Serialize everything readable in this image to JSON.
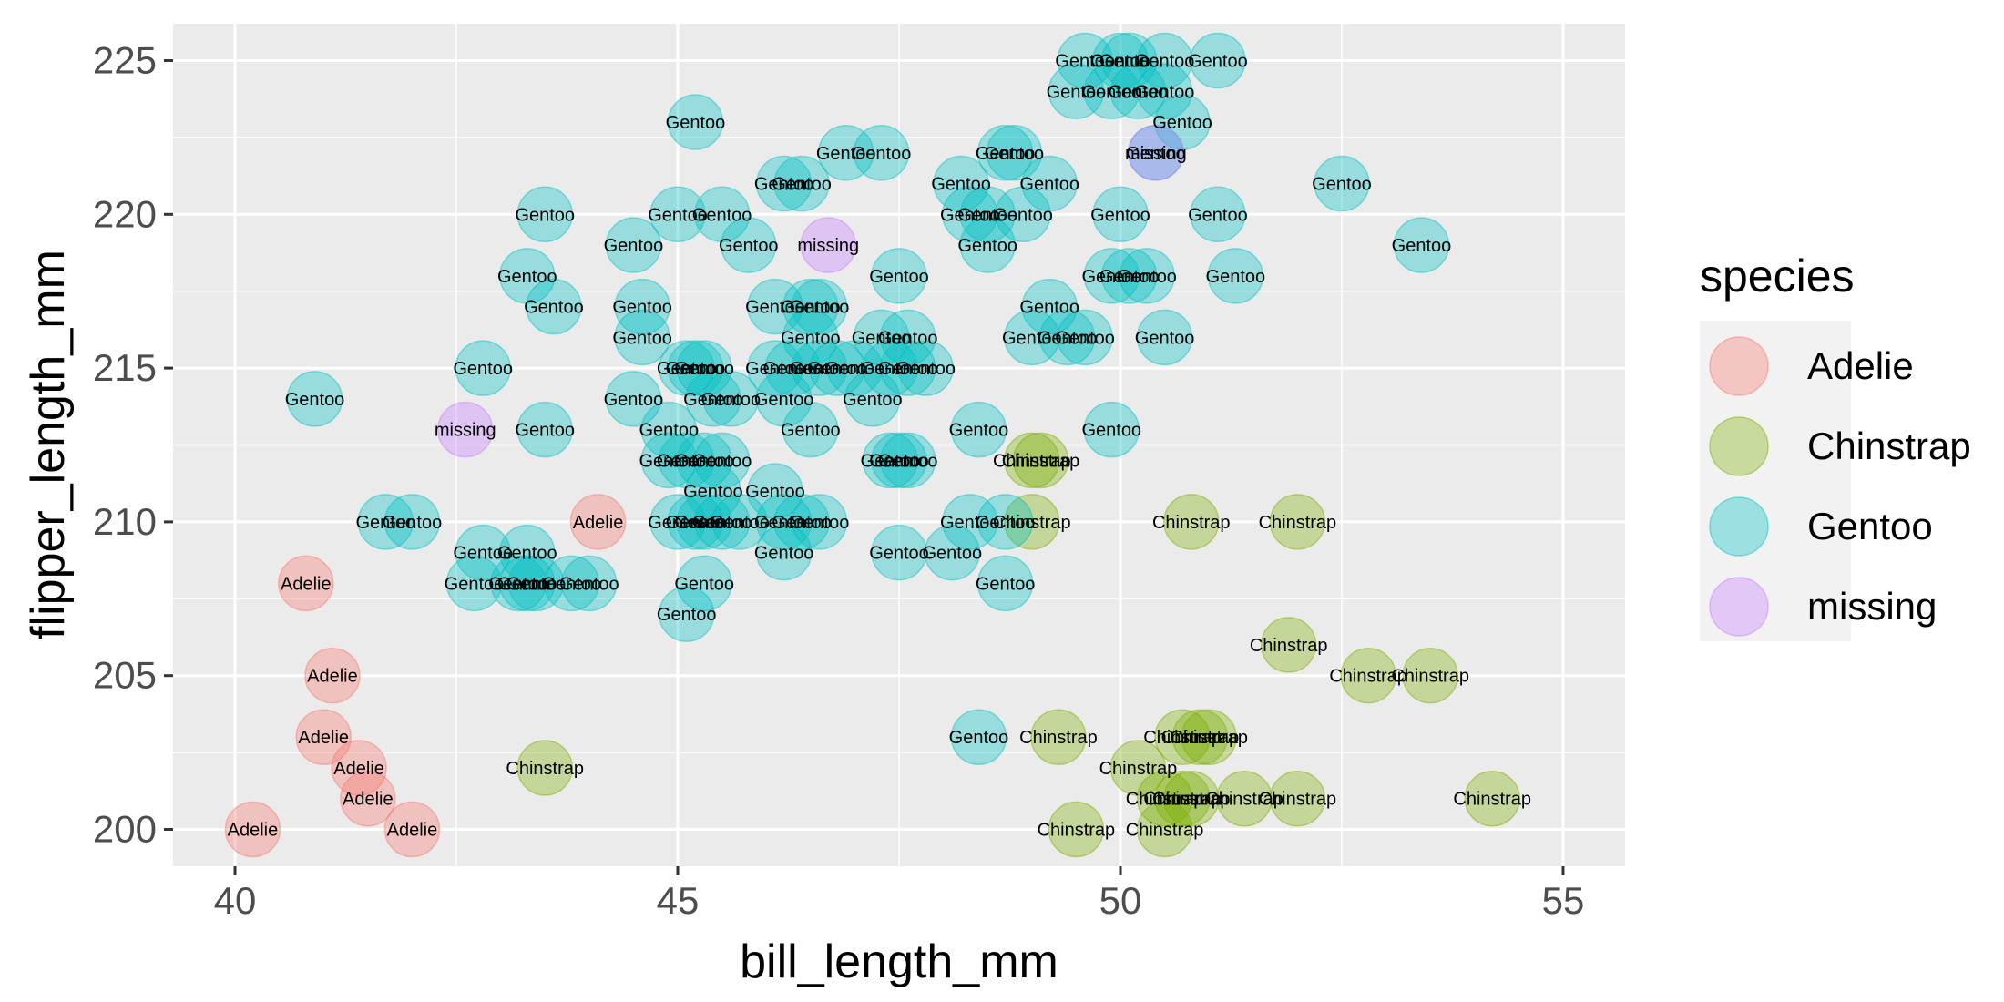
{
  "chart_data": {
    "type": "scatter",
    "xlabel": "bill_length_mm",
    "ylabel": "flipper_length_mm",
    "xlim": [
      39.3,
      55.7
    ],
    "ylim": [
      198.8,
      226.2
    ],
    "xticks": [
      40,
      45,
      50,
      55
    ],
    "yticks": [
      200,
      205,
      210,
      215,
      220,
      225
    ],
    "grid": true,
    "legend": {
      "title": "species",
      "position": "right",
      "entries": [
        {
          "label": "Adelie",
          "color": "#F8766D"
        },
        {
          "label": "Chinstrap",
          "color": "#7CAE00"
        },
        {
          "label": "Gentoo",
          "color": "#00BFC4"
        },
        {
          "label": "missing",
          "color": "#C77CFF"
        }
      ]
    },
    "series": [
      {
        "name": "Adelie",
        "color": "#F8766D",
        "points": [
          {
            "x": 40.2,
            "y": 200
          },
          {
            "x": 42.0,
            "y": 200
          },
          {
            "x": 41.5,
            "y": 201
          },
          {
            "x": 41.4,
            "y": 202
          },
          {
            "x": 41.0,
            "y": 203
          },
          {
            "x": 41.1,
            "y": 205
          },
          {
            "x": 40.8,
            "y": 208
          },
          {
            "x": 44.1,
            "y": 210
          }
        ]
      },
      {
        "name": "Chinstrap",
        "color": "#7CAE00",
        "points": [
          {
            "x": 43.5,
            "y": 202
          },
          {
            "x": 49.3,
            "y": 203
          },
          {
            "x": 49.5,
            "y": 200
          },
          {
            "x": 50.5,
            "y": 200
          },
          {
            "x": 50.2,
            "y": 202
          },
          {
            "x": 50.5,
            "y": 201
          },
          {
            "x": 50.7,
            "y": 201
          },
          {
            "x": 50.8,
            "y": 201
          },
          {
            "x": 51.4,
            "y": 201
          },
          {
            "x": 52.0,
            "y": 201
          },
          {
            "x": 50.7,
            "y": 203
          },
          {
            "x": 50.9,
            "y": 203
          },
          {
            "x": 51.0,
            "y": 203
          },
          {
            "x": 51.9,
            "y": 206
          },
          {
            "x": 52.8,
            "y": 205
          },
          {
            "x": 53.5,
            "y": 205
          },
          {
            "x": 54.2,
            "y": 201
          },
          {
            "x": 49.0,
            "y": 210
          },
          {
            "x": 50.8,
            "y": 210
          },
          {
            "x": 52.0,
            "y": 210
          },
          {
            "x": 49.0,
            "y": 212
          },
          {
            "x": 49.1,
            "y": 212
          }
        ]
      },
      {
        "name": "Gentoo",
        "color": "#00BFC4",
        "points": [
          {
            "x": 49.6,
            "y": 225
          },
          {
            "x": 50.0,
            "y": 225
          },
          {
            "x": 50.1,
            "y": 225
          },
          {
            "x": 50.5,
            "y": 225
          },
          {
            "x": 51.1,
            "y": 225
          },
          {
            "x": 49.5,
            "y": 224
          },
          {
            "x": 49.9,
            "y": 224
          },
          {
            "x": 50.2,
            "y": 224
          },
          {
            "x": 50.5,
            "y": 224
          },
          {
            "x": 50.7,
            "y": 223
          },
          {
            "x": 45.2,
            "y": 223
          },
          {
            "x": 46.9,
            "y": 222
          },
          {
            "x": 47.3,
            "y": 222
          },
          {
            "x": 48.7,
            "y": 222
          },
          {
            "x": 48.8,
            "y": 222
          },
          {
            "x": 50.4,
            "y": 222
          },
          {
            "x": 46.2,
            "y": 221
          },
          {
            "x": 46.4,
            "y": 221
          },
          {
            "x": 48.2,
            "y": 221
          },
          {
            "x": 49.2,
            "y": 221
          },
          {
            "x": 52.5,
            "y": 221
          },
          {
            "x": 43.5,
            "y": 220
          },
          {
            "x": 45.0,
            "y": 220
          },
          {
            "x": 45.5,
            "y": 220
          },
          {
            "x": 48.3,
            "y": 220
          },
          {
            "x": 48.5,
            "y": 220
          },
          {
            "x": 48.9,
            "y": 220
          },
          {
            "x": 50.0,
            "y": 220
          },
          {
            "x": 51.1,
            "y": 220
          },
          {
            "x": 44.5,
            "y": 219
          },
          {
            "x": 45.8,
            "y": 219
          },
          {
            "x": 48.5,
            "y": 219
          },
          {
            "x": 53.4,
            "y": 219
          },
          {
            "x": 43.3,
            "y": 218
          },
          {
            "x": 47.5,
            "y": 218
          },
          {
            "x": 49.9,
            "y": 218
          },
          {
            "x": 50.1,
            "y": 218
          },
          {
            "x": 50.3,
            "y": 218
          },
          {
            "x": 51.3,
            "y": 218
          },
          {
            "x": 43.6,
            "y": 217
          },
          {
            "x": 44.6,
            "y": 217
          },
          {
            "x": 46.1,
            "y": 217
          },
          {
            "x": 46.5,
            "y": 217
          },
          {
            "x": 46.6,
            "y": 217
          },
          {
            "x": 49.2,
            "y": 217
          },
          {
            "x": 44.6,
            "y": 216
          },
          {
            "x": 46.5,
            "y": 216
          },
          {
            "x": 47.3,
            "y": 216
          },
          {
            "x": 47.6,
            "y": 216
          },
          {
            "x": 49.0,
            "y": 216
          },
          {
            "x": 49.4,
            "y": 216
          },
          {
            "x": 49.6,
            "y": 216
          },
          {
            "x": 50.5,
            "y": 216
          },
          {
            "x": 42.8,
            "y": 215
          },
          {
            "x": 45.1,
            "y": 215
          },
          {
            "x": 45.2,
            "y": 215
          },
          {
            "x": 45.3,
            "y": 215
          },
          {
            "x": 46.1,
            "y": 215
          },
          {
            "x": 46.3,
            "y": 215
          },
          {
            "x": 46.6,
            "y": 215
          },
          {
            "x": 46.8,
            "y": 215
          },
          {
            "x": 47.0,
            "y": 215
          },
          {
            "x": 47.4,
            "y": 215
          },
          {
            "x": 47.6,
            "y": 215
          },
          {
            "x": 47.8,
            "y": 215
          },
          {
            "x": 40.9,
            "y": 214
          },
          {
            "x": 44.5,
            "y": 214
          },
          {
            "x": 45.4,
            "y": 214
          },
          {
            "x": 45.6,
            "y": 214
          },
          {
            "x": 46.2,
            "y": 214
          },
          {
            "x": 47.2,
            "y": 214
          },
          {
            "x": 43.5,
            "y": 213
          },
          {
            "x": 44.9,
            "y": 213
          },
          {
            "x": 46.5,
            "y": 213
          },
          {
            "x": 48.4,
            "y": 213
          },
          {
            "x": 49.9,
            "y": 213
          },
          {
            "x": 44.9,
            "y": 212
          },
          {
            "x": 45.1,
            "y": 212
          },
          {
            "x": 45.3,
            "y": 212
          },
          {
            "x": 45.5,
            "y": 212
          },
          {
            "x": 47.4,
            "y": 212
          },
          {
            "x": 47.5,
            "y": 212
          },
          {
            "x": 47.6,
            "y": 212
          },
          {
            "x": 45.4,
            "y": 211
          },
          {
            "x": 46.1,
            "y": 211
          },
          {
            "x": 41.7,
            "y": 210
          },
          {
            "x": 42.0,
            "y": 210
          },
          {
            "x": 45.0,
            "y": 210
          },
          {
            "x": 45.2,
            "y": 210
          },
          {
            "x": 45.3,
            "y": 210
          },
          {
            "x": 45.5,
            "y": 210
          },
          {
            "x": 45.7,
            "y": 210
          },
          {
            "x": 46.2,
            "y": 210
          },
          {
            "x": 46.4,
            "y": 210
          },
          {
            "x": 46.6,
            "y": 210
          },
          {
            "x": 48.3,
            "y": 210
          },
          {
            "x": 48.7,
            "y": 210
          },
          {
            "x": 42.8,
            "y": 209
          },
          {
            "x": 43.3,
            "y": 209
          },
          {
            "x": 46.2,
            "y": 209
          },
          {
            "x": 47.5,
            "y": 209
          },
          {
            "x": 48.1,
            "y": 209
          },
          {
            "x": 42.7,
            "y": 208
          },
          {
            "x": 43.2,
            "y": 208
          },
          {
            "x": 43.3,
            "y": 208
          },
          {
            "x": 43.4,
            "y": 208
          },
          {
            "x": 43.8,
            "y": 208
          },
          {
            "x": 44.0,
            "y": 208
          },
          {
            "x": 45.3,
            "y": 208
          },
          {
            "x": 48.7,
            "y": 208
          },
          {
            "x": 45.1,
            "y": 207
          },
          {
            "x": 48.4,
            "y": 203
          }
        ]
      },
      {
        "name": "missing",
        "color": "#C77CFF",
        "points": [
          {
            "x": 42.6,
            "y": 213
          },
          {
            "x": 46.7,
            "y": 219
          },
          {
            "x": 50.4,
            "y": 222
          }
        ]
      }
    ]
  }
}
